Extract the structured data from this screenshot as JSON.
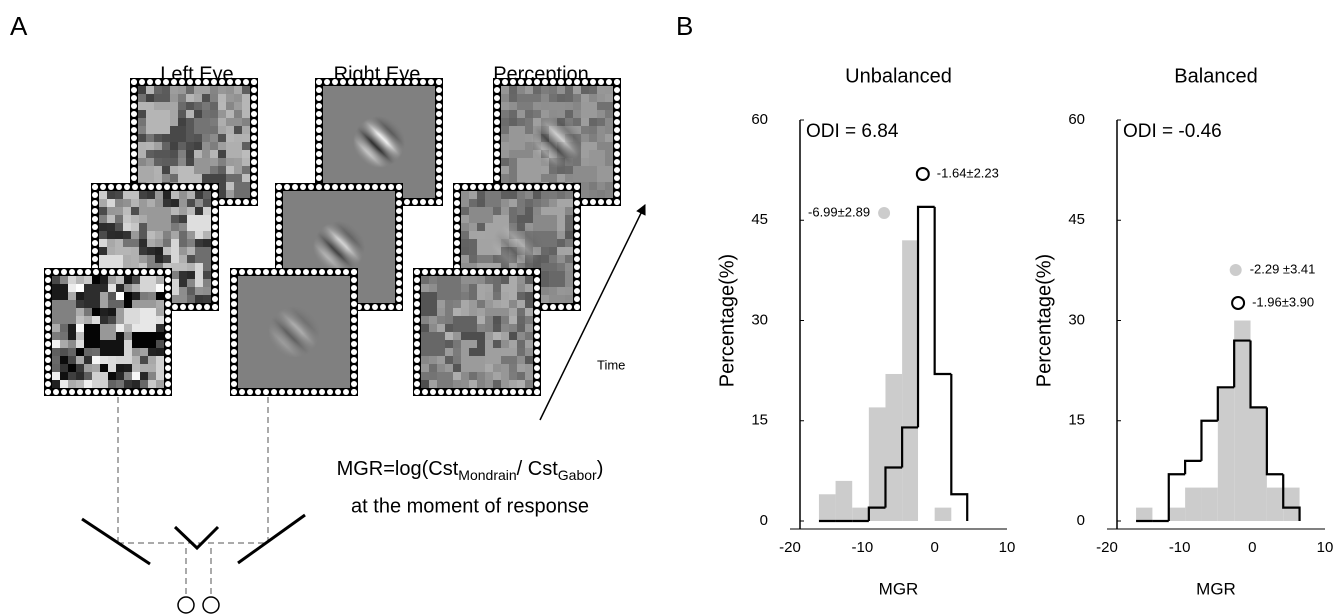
{
  "panel_a": {
    "label": "A",
    "columns": [
      "Left Eye",
      "Right Eye",
      "Perception"
    ],
    "time_label": "Time",
    "formula": {
      "main": "MGR=log(Cst",
      "sub1": "Mondrain",
      "mid": "/ Cst",
      "sub2": "Gabor",
      "end": ")"
    },
    "formula_line2": "at the moment of response"
  },
  "panel_b_label": "B",
  "chart_data": [
    {
      "type": "histogram",
      "title": "Unbalanced",
      "xlabel": "MGR",
      "ylabel": "Percentage(%)",
      "annotation": "ODI = 6.84",
      "xlim": [
        -20,
        10
      ],
      "xticks": [
        -20,
        -10,
        0,
        10
      ],
      "ylim": [
        0,
        60
      ],
      "yticks": [
        0,
        15,
        30,
        45,
        60
      ],
      "bins": [
        -16,
        -13.7,
        -11.4,
        -9.1,
        -6.8,
        -4.5,
        -2.3,
        0,
        2.3,
        4.5
      ],
      "series": [
        {
          "color": "#cccccc",
          "histtype": "stepfilled",
          "values": [
            4,
            6,
            2,
            17,
            22,
            42,
            0,
            2,
            0
          ],
          "mean": -6.99,
          "sd": 2.89,
          "mean_label": "-6.99±2.89"
        },
        {
          "color": "#000000",
          "histtype": "step",
          "values": [
            0,
            0,
            0,
            2,
            8,
            14,
            47,
            22,
            4
          ],
          "mean": -1.64,
          "sd": 2.23,
          "mean_label": "-1.64±2.23"
        }
      ]
    },
    {
      "type": "histogram",
      "title": "Balanced",
      "xlabel": "MGR",
      "ylabel": "Percentage(%)",
      "annotation": "ODI = -0.46",
      "xlim": [
        -20,
        10
      ],
      "xticks": [
        -20,
        -10,
        0,
        10
      ],
      "ylim": [
        0,
        60
      ],
      "yticks": [
        0,
        15,
        30,
        45,
        60
      ],
      "bins": [
        -16,
        -13.75,
        -11.5,
        -9.25,
        -7,
        -4.75,
        -2.5,
        -0.25,
        2,
        4.25,
        6.5
      ],
      "series": [
        {
          "color": "#cccccc",
          "histtype": "stepfilled",
          "values": [
            2,
            0,
            2,
            5,
            5,
            20,
            30,
            17,
            5,
            5
          ],
          "mean": -2.29,
          "sd": 3.41,
          "mean_label": "-2.29 ±3.41"
        },
        {
          "color": "#000000",
          "histtype": "step",
          "values": [
            0,
            0,
            7,
            9,
            15,
            20,
            27,
            17,
            7,
            2
          ],
          "mean": -1.96,
          "sd": 3.9,
          "mean_label": "-1.96±3.90"
        }
      ]
    }
  ]
}
